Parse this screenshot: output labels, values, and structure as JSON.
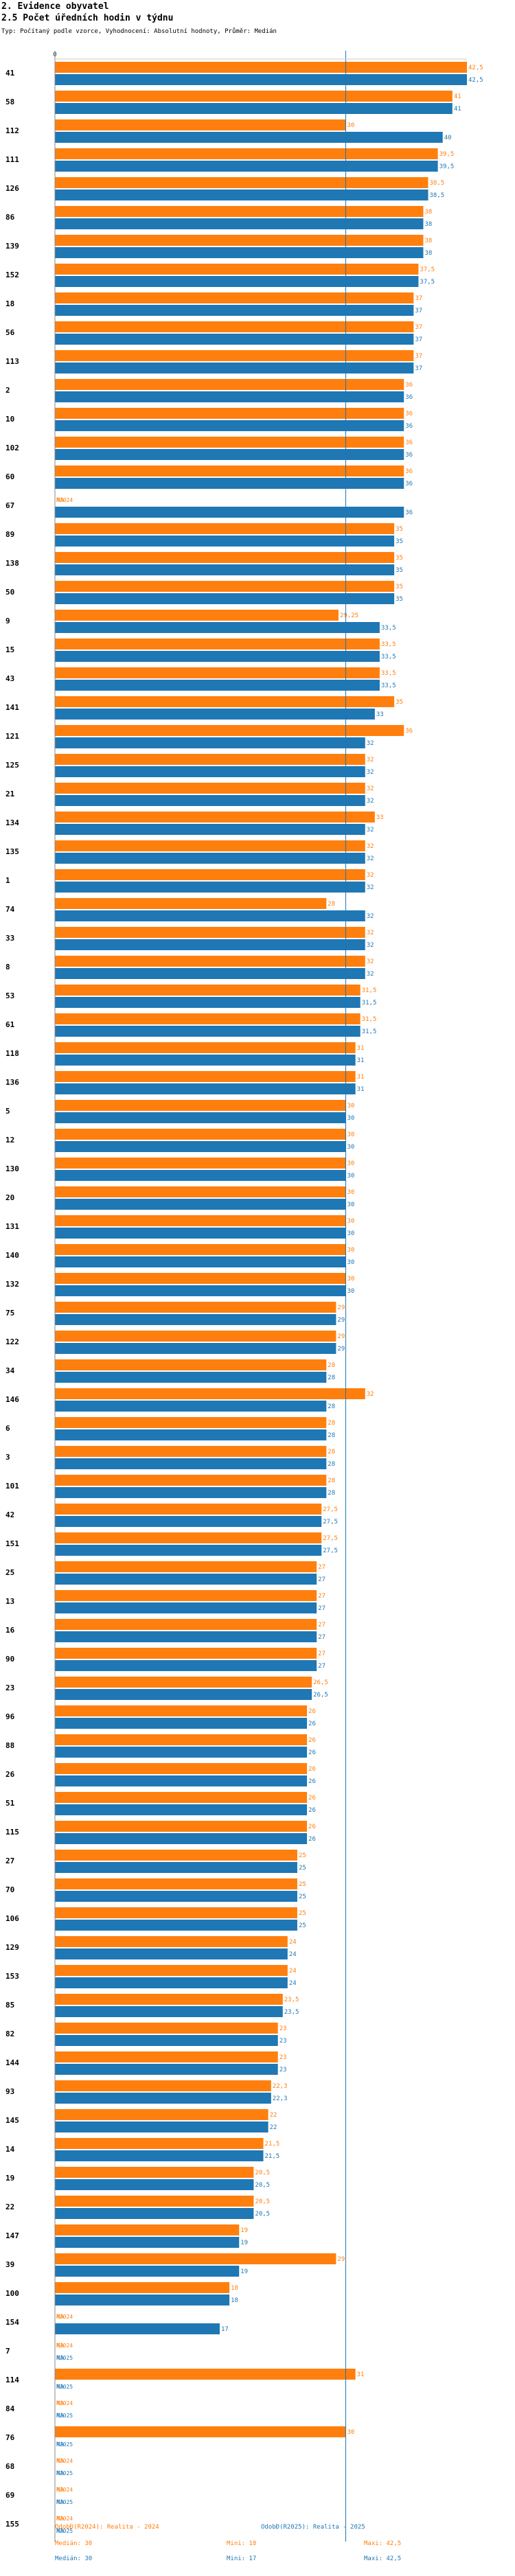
{
  "header": {
    "section": "2. Evidence obyvatel",
    "title": "2.5 Počet úředních hodin v týdnu",
    "subtitle": "Typ: Počítaný podle vzorce, Vyhodnocení: Absolutní hodnoty, Průměr: Medián"
  },
  "chart_data": {
    "type": "bar",
    "orientation": "horizontal",
    "title": "2.5 Počet úředních hodin v týdnu",
    "xlim": [
      0,
      42.5
    ],
    "axis_tick": "0",
    "categories": [
      "41",
      "58",
      "112",
      "111",
      "126",
      "86",
      "139",
      "152",
      "18",
      "56",
      "113",
      "2",
      "10",
      "102",
      "60",
      "67",
      "89",
      "138",
      "50",
      "9",
      "15",
      "43",
      "141",
      "121",
      "125",
      "21",
      "134",
      "135",
      "1",
      "74",
      "33",
      "8",
      "53",
      "61",
      "118",
      "136",
      "5",
      "12",
      "130",
      "20",
      "131",
      "140",
      "132",
      "75",
      "122",
      "34",
      "146",
      "6",
      "3",
      "101",
      "42",
      "151",
      "25",
      "13",
      "16",
      "90",
      "23",
      "96",
      "88",
      "26",
      "51",
      "115",
      "27",
      "70",
      "106",
      "129",
      "153",
      "85",
      "82",
      "144",
      "93",
      "145",
      "14",
      "19",
      "22",
      "147",
      "39",
      "100",
      "154",
      "7",
      "114",
      "84",
      "76",
      "68",
      "69",
      "155"
    ],
    "series": [
      {
        "name": "R2024",
        "label": "R2024",
        "color": "#ff7f0e",
        "values": [
          42.5,
          41,
          30,
          39.5,
          38.5,
          38,
          38,
          37.5,
          37,
          37,
          37,
          36,
          36,
          36,
          36,
          null,
          35,
          35,
          35,
          29.25,
          33.5,
          33.5,
          35,
          36,
          32,
          32,
          33,
          32,
          32,
          28,
          32,
          32,
          31.5,
          31.5,
          31,
          31,
          30,
          30,
          30,
          30,
          30,
          30,
          30,
          29,
          29,
          28,
          32,
          28,
          28,
          28,
          27.5,
          27.5,
          27,
          27,
          27,
          27,
          26.5,
          26,
          26,
          26,
          26,
          26,
          25,
          25,
          25,
          24,
          24,
          23.5,
          23,
          23,
          22.3,
          22,
          21.5,
          20.5,
          20.5,
          19,
          29,
          18,
          null,
          null,
          31,
          null,
          30,
          null,
          null,
          null
        ],
        "labels": [
          "42,5",
          "41",
          "30",
          "39,5",
          "38,5",
          "38",
          "38",
          "37,5",
          "37",
          "37",
          "37",
          "36",
          "36",
          "36",
          "36",
          "NA",
          "35",
          "35",
          "35",
          "29,25",
          "33,5",
          "33,5",
          "35",
          "36",
          "32",
          "32",
          "33",
          "32",
          "32",
          "28",
          "32",
          "32",
          "31,5",
          "31,5",
          "31",
          "31",
          "30",
          "30",
          "30",
          "30",
          "30",
          "30",
          "30",
          "29",
          "29",
          "28",
          "32",
          "28",
          "28",
          "28",
          "27,5",
          "27,5",
          "27",
          "27",
          "27",
          "27",
          "26,5",
          "26",
          "26",
          "26",
          "26",
          "26",
          "25",
          "25",
          "25",
          "24",
          "24",
          "23,5",
          "23",
          "23",
          "22,3",
          "22",
          "21,5",
          "20,5",
          "20,5",
          "19",
          "29",
          "18",
          "NA",
          "NA",
          "31",
          "NA",
          "30",
          "NA",
          "NA",
          "NA"
        ]
      },
      {
        "name": "R2025",
        "label": "R2025",
        "color": "#1f77b4",
        "values": [
          42.5,
          41,
          40,
          39.5,
          38.5,
          38,
          38,
          37.5,
          37,
          37,
          37,
          36,
          36,
          36,
          36,
          36,
          35,
          35,
          35,
          33.5,
          33.5,
          33.5,
          33,
          32,
          32,
          32,
          32,
          32,
          32,
          32,
          32,
          32,
          31.5,
          31.5,
          31,
          31,
          30,
          30,
          30,
          30,
          30,
          30,
          30,
          29,
          29,
          28,
          28,
          28,
          28,
          28,
          27.5,
          27.5,
          27,
          27,
          27,
          27,
          26.5,
          26,
          26,
          26,
          26,
          26,
          25,
          25,
          25,
          24,
          24,
          23.5,
          23,
          23,
          22.3,
          22,
          21.5,
          20.5,
          20.5,
          19,
          19,
          18,
          17,
          null,
          null,
          null,
          null,
          null,
          null,
          null
        ],
        "labels": [
          "42,5",
          "41",
          "40",
          "39,5",
          "38,5",
          "38",
          "38",
          "37,5",
          "37",
          "37",
          "37",
          "36",
          "36",
          "36",
          "36",
          "36",
          "35",
          "35",
          "35",
          "33,5",
          "33,5",
          "33,5",
          "33",
          "32",
          "32",
          "32",
          "32",
          "32",
          "32",
          "32",
          "32",
          "32",
          "31,5",
          "31,5",
          "31",
          "31",
          "30",
          "30",
          "30",
          "30",
          "30",
          "30",
          "30",
          "29",
          "29",
          "28",
          "28",
          "28",
          "28",
          "28",
          "27,5",
          "27,5",
          "27",
          "27",
          "27",
          "27",
          "26,5",
          "26",
          "26",
          "26",
          "26",
          "26",
          "25",
          "25",
          "25",
          "24",
          "24",
          "23,5",
          "23",
          "23",
          "22,3",
          "22",
          "21,5",
          "20,5",
          "20,5",
          "19",
          "19",
          "18",
          "17",
          "NA",
          "NA",
          "NA",
          "NA",
          "NA",
          "NA",
          "NA"
        ]
      }
    ],
    "reference_line": {
      "value": 30,
      "label": "Medián"
    }
  },
  "legend": {
    "r2024_title": "OdobĐ(R2024): Realita - 2024",
    "r2025_title": "OdobĐ(R2025): Realita - 2025",
    "r2024_median": "Medián: 30",
    "r2024_min": "Mini: 18",
    "r2024_max": "Maxi: 42,5",
    "r2025_median": "Medián: 30",
    "r2025_min": "Mini: 17",
    "r2025_max": "Maxi: 42,5"
  }
}
